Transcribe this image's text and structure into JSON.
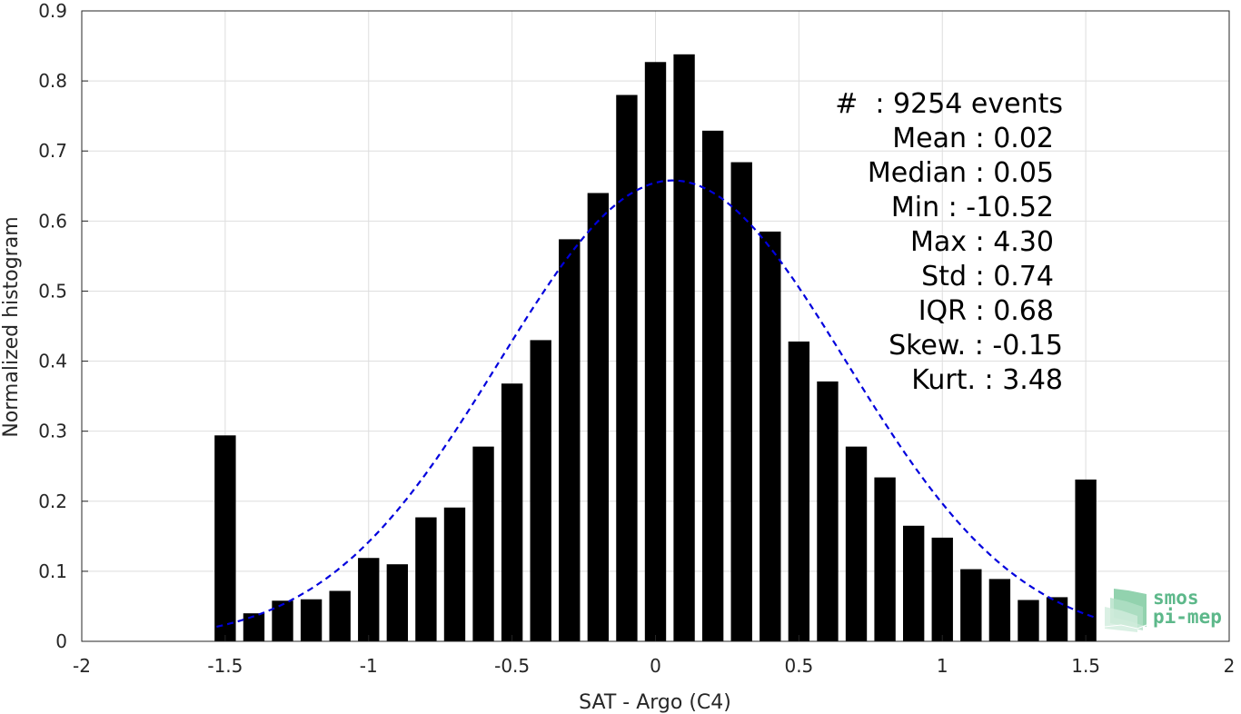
{
  "chart_data": {
    "type": "bar",
    "xlabel": "SAT - Argo (C4)",
    "ylabel": "Normalized histogram",
    "xlim": [
      -2,
      2
    ],
    "ylim": [
      0,
      0.9
    ],
    "xticks": [
      "-2",
      "-1.5",
      "-1",
      "-0.5",
      "0",
      "0.5",
      "1",
      "1.5",
      "2"
    ],
    "yticks": [
      "0",
      "0.1",
      "0.2",
      "0.3",
      "0.4",
      "0.5",
      "0.6",
      "0.7",
      "0.8",
      "0.9"
    ],
    "grid": true,
    "bar_color": "#000000",
    "bars": {
      "x": [
        -1.5,
        -1.4,
        -1.3,
        -1.2,
        -1.1,
        -1.0,
        -0.9,
        -0.8,
        -0.7,
        -0.6,
        -0.5,
        -0.4,
        -0.3,
        -0.2,
        -0.1,
        0.0,
        0.1,
        0.2,
        0.3,
        0.4,
        0.5,
        0.6,
        0.7,
        0.8,
        0.9,
        1.0,
        1.1,
        1.2,
        1.3,
        1.4,
        1.5
      ],
      "values": [
        0.294,
        0.04,
        0.058,
        0.06,
        0.072,
        0.119,
        0.11,
        0.177,
        0.191,
        0.278,
        0.368,
        0.43,
        0.574,
        0.64,
        0.78,
        0.827,
        0.838,
        0.729,
        0.684,
        0.585,
        0.428,
        0.371,
        0.278,
        0.234,
        0.165,
        0.148,
        0.103,
        0.089,
        0.059,
        0.063,
        0.231
      ]
    },
    "fit_curve": {
      "style": "dashed",
      "color": "#0000dd",
      "mean": 0.06,
      "std": 0.605,
      "peak": 0.658,
      "x_range": [
        -1.53,
        1.53
      ]
    },
    "stats": {
      "events": "#  : 9254 events",
      "mean": "Mean : 0.02",
      "median": "Median : 0.05",
      "min": "Min : -10.52",
      "max": "Max : 4.30",
      "std": "Std : 0.74",
      "iqr": "IQR : 0.68",
      "skew": "Skew. : -0.15",
      "kurt": "Kurt. : 3.48"
    }
  },
  "logo": {
    "line1": "smos",
    "line2": "pi-mep",
    "color": "#5db88a"
  }
}
